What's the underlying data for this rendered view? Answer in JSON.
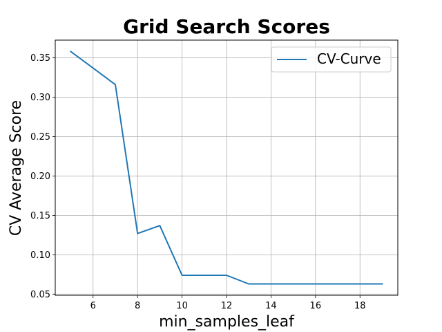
{
  "chart_data": {
    "type": "line",
    "title": "Grid Search Scores",
    "xlabel": "min_samples_leaf",
    "ylabel": "CV Average Score",
    "xlim": [
      4.3,
      19.7
    ],
    "ylim": [
      0.0485,
      0.3725
    ],
    "xticks": [
      6,
      8,
      10,
      12,
      14,
      16,
      18
    ],
    "xtick_labels": [
      "6",
      "8",
      "10",
      "12",
      "14",
      "16",
      "18"
    ],
    "yticks": [
      0.05,
      0.1,
      0.15,
      0.2,
      0.25,
      0.3,
      0.35
    ],
    "ytick_labels": [
      "0.05",
      "0.10",
      "0.15",
      "0.20",
      "0.25",
      "0.30",
      "0.35"
    ],
    "grid": true,
    "legend": "top-right",
    "series": [
      {
        "name": "CV-Curve",
        "color": "#1f77b4",
        "x": [
          5,
          7,
          8,
          9,
          10,
          12,
          13,
          19
        ],
        "y": [
          0.358,
          0.316,
          0.127,
          0.137,
          0.074,
          0.074,
          0.063,
          0.063
        ]
      }
    ]
  }
}
